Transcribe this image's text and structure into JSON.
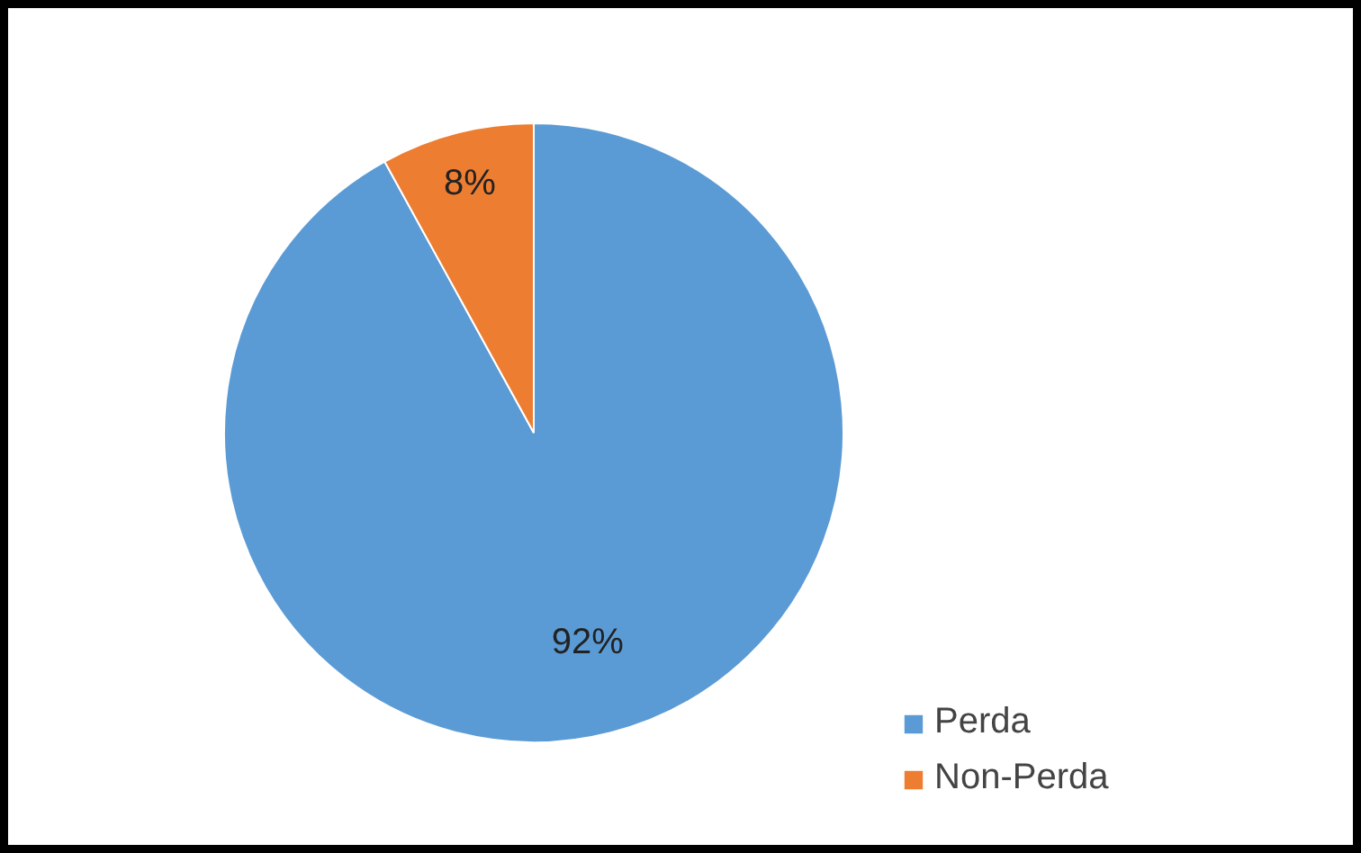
{
  "chart_data": {
    "type": "pie",
    "categories": [
      "Perda",
      "Non-Perda"
    ],
    "values": [
      92,
      8
    ],
    "colors": [
      "#5b9bd5",
      "#ed7d31"
    ],
    "value_labels": [
      "92%",
      "8%"
    ],
    "legend": "bottom right"
  }
}
